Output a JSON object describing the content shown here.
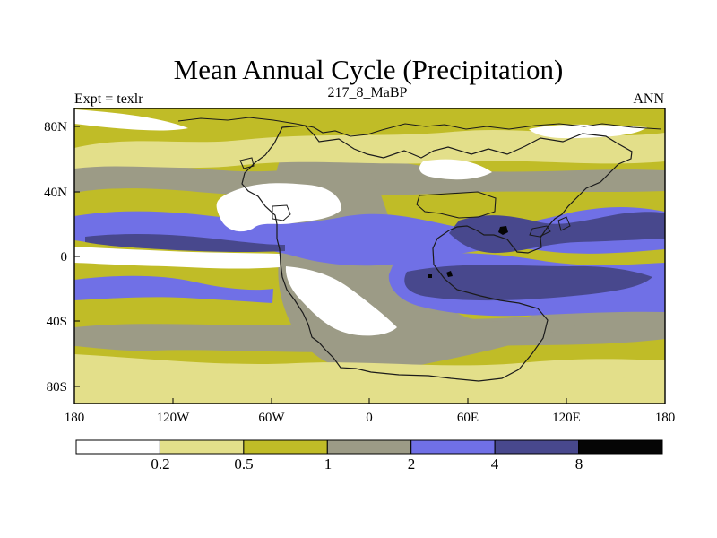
{
  "figure": {
    "title": "Mean Annual Cycle (Precipitation)",
    "left_label": "Expt = texlr",
    "center_label": "217_8_MaBP",
    "right_label": "ANN"
  },
  "axes": {
    "x_ticks": [
      "180",
      "120W",
      "60W",
      "0",
      "60E",
      "120E",
      "180"
    ],
    "y_ticks": [
      "80N",
      "40N",
      "0",
      "40S",
      "80S"
    ]
  },
  "legend": {
    "colors": [
      "#ffffff",
      "#e3df8a",
      "#c0bc27",
      "#9c9b86",
      "#7070e6",
      "#48488d",
      "#050505"
    ],
    "labels": [
      "0.2",
      "0.5",
      "1",
      "2",
      "4",
      "8"
    ]
  },
  "palette": {
    "frame": "#000000",
    "coast": "#1b1b1b"
  }
}
